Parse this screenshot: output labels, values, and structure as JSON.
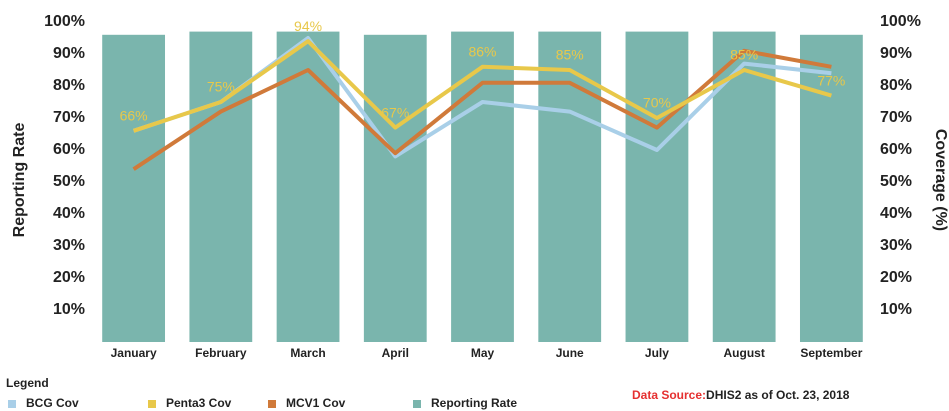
{
  "chart_data": {
    "type": "bar_line",
    "ylabel": "Reporting Rate",
    "y2label": "Coverage (%)",
    "categories": [
      "January",
      "February",
      "March",
      "April",
      "May",
      "June",
      "July",
      "August",
      "September"
    ],
    "series": [
      {
        "name": "Reporting Rate",
        "kind": "bar",
        "axis": "y",
        "color": "#7ab5ad",
        "values": [
          96,
          97,
          97,
          96,
          97,
          97,
          97,
          97,
          96
        ]
      },
      {
        "name": "BCG Cov",
        "kind": "line",
        "axis": "y2",
        "color": "#a9cfe8",
        "values": [
          66,
          75,
          95,
          58,
          75,
          72,
          60,
          87,
          84
        ]
      },
      {
        "name": "MCV1 Cov",
        "kind": "line",
        "axis": "y2",
        "color": "#d07a3a",
        "values": [
          54,
          72,
          85,
          59,
          81,
          81,
          67,
          91,
          86
        ]
      },
      {
        "name": "Penta3 Cov",
        "kind": "line",
        "axis": "y2",
        "color": "#e8c84a",
        "values": [
          66,
          75,
          94,
          67,
          86,
          85,
          70,
          85,
          77
        ],
        "value_labels": [
          "66%",
          "75%",
          "94%",
          "67%",
          "86%",
          "85%",
          "70%",
          "85%",
          "77%"
        ]
      }
    ],
    "legend_title": "Legend",
    "legend_order": [
      1,
      3,
      2,
      0
    ],
    "ylim": [
      0,
      100
    ],
    "yticks": [
      {
        "value": 10,
        "label": "10%"
      },
      {
        "value": 20,
        "label": "20%"
      },
      {
        "value": 30,
        "label": "30%"
      },
      {
        "value": 40,
        "label": "40%"
      },
      {
        "value": 50,
        "label": "50%"
      },
      {
        "value": 60,
        "label": "60%"
      },
      {
        "value": 70,
        "label": "70%"
      },
      {
        "value": 80,
        "label": "80%"
      },
      {
        "value": 90,
        "label": "90%"
      },
      {
        "value": 100,
        "label": "100%"
      }
    ],
    "y2lim": [
      0,
      100
    ],
    "y2ticks": [
      {
        "value": 10,
        "label": "10%"
      },
      {
        "value": 20,
        "label": "20%"
      },
      {
        "value": 30,
        "label": "30%"
      },
      {
        "value": 40,
        "label": "40%"
      },
      {
        "value": 50,
        "label": "50%"
      },
      {
        "value": 60,
        "label": "60%"
      },
      {
        "value": 70,
        "label": "70%"
      },
      {
        "value": 80,
        "label": "80%"
      },
      {
        "value": 90,
        "label": "90%"
      },
      {
        "value": 100,
        "label": "100%"
      }
    ],
    "grid": false,
    "source_label": "Data Source:",
    "source": "DHIS2 as of Oct. 23, 2018"
  }
}
